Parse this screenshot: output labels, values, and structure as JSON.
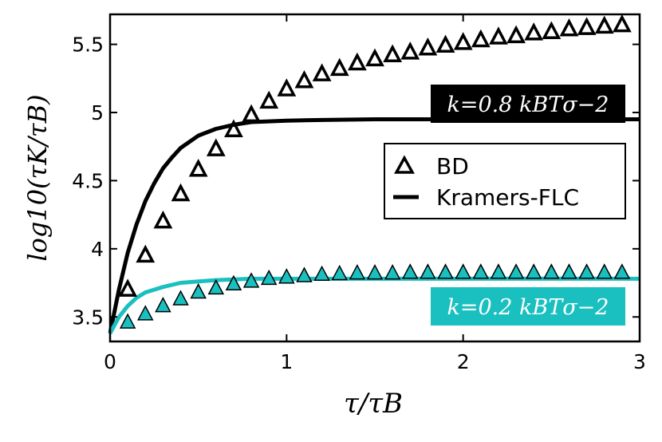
{
  "chart_data": {
    "type": "scatter",
    "xlabel": "τ/τB",
    "ylabel": "log10(τK/τB)",
    "xlim": [
      0,
      3
    ],
    "ylim": [
      3.32,
      5.72
    ],
    "xticks": [
      "0",
      "1",
      "2",
      "3"
    ],
    "yticks": [
      "3.5",
      "4",
      "4.5",
      "5",
      "5.5"
    ],
    "grid": false,
    "legend_position": "center-right",
    "legend": [
      {
        "label": "BD",
        "marker": "triangle-open"
      },
      {
        "label": "Kramers-FLC",
        "marker": "line"
      }
    ],
    "annotations": [
      {
        "text": "k=0.8 kBTσ−2",
        "background": "#000000"
      },
      {
        "text": "k=0.2 kBTσ−2",
        "background": "#1abfbf"
      }
    ],
    "series": [
      {
        "kind": "markers",
        "group": "k=0.8",
        "color": "#000000",
        "x": [
          0.1,
          0.2,
          0.3,
          0.4,
          0.5,
          0.6,
          0.7,
          0.8,
          0.9,
          1.0,
          1.1,
          1.2,
          1.3,
          1.4,
          1.5,
          1.6,
          1.7,
          1.8,
          1.9,
          2.0,
          2.1,
          2.2,
          2.3,
          2.4,
          2.5,
          2.6,
          2.7,
          2.8,
          2.9
        ],
        "y": [
          3.7,
          3.95,
          4.2,
          4.4,
          4.58,
          4.73,
          4.87,
          4.98,
          5.08,
          5.17,
          5.23,
          5.28,
          5.32,
          5.36,
          5.39,
          5.42,
          5.44,
          5.47,
          5.49,
          5.51,
          5.53,
          5.55,
          5.56,
          5.58,
          5.59,
          5.61,
          5.62,
          5.63,
          5.64
        ]
      },
      {
        "kind": "line",
        "group": "k=0.8",
        "color": "#000000",
        "x": [
          0,
          0.05,
          0.1,
          0.15,
          0.2,
          0.25,
          0.3,
          0.35,
          0.4,
          0.5,
          0.6,
          0.7,
          0.8,
          1.0,
          1.2,
          1.5,
          2.0,
          2.5,
          3.0
        ],
        "y": [
          3.38,
          3.7,
          3.97,
          4.18,
          4.35,
          4.48,
          4.59,
          4.67,
          4.74,
          4.83,
          4.88,
          4.91,
          4.93,
          4.94,
          4.945,
          4.95,
          4.95,
          4.95,
          4.95
        ]
      },
      {
        "kind": "markers",
        "group": "k=0.2",
        "color": "#1abfbf",
        "x": [
          0.1,
          0.2,
          0.3,
          0.4,
          0.5,
          0.6,
          0.7,
          0.8,
          0.9,
          1.0,
          1.1,
          1.2,
          1.3,
          1.4,
          1.5,
          1.6,
          1.7,
          1.8,
          1.9,
          2.0,
          2.1,
          2.2,
          2.3,
          2.4,
          2.5,
          2.6,
          2.7,
          2.8,
          2.9
        ],
        "y": [
          3.46,
          3.52,
          3.58,
          3.63,
          3.68,
          3.71,
          3.74,
          3.76,
          3.78,
          3.79,
          3.8,
          3.81,
          3.815,
          3.82,
          3.82,
          3.82,
          3.825,
          3.825,
          3.825,
          3.825,
          3.825,
          3.825,
          3.825,
          3.825,
          3.825,
          3.825,
          3.825,
          3.825,
          3.825
        ]
      },
      {
        "kind": "line",
        "group": "k=0.2",
        "color": "#1abfbf",
        "x": [
          0,
          0.05,
          0.1,
          0.15,
          0.2,
          0.3,
          0.4,
          0.5,
          0.6,
          0.8,
          1.0,
          1.5,
          2.0,
          3.0
        ],
        "y": [
          3.38,
          3.5,
          3.58,
          3.64,
          3.68,
          3.72,
          3.75,
          3.76,
          3.77,
          3.78,
          3.78,
          3.78,
          3.78,
          3.78
        ]
      }
    ]
  }
}
